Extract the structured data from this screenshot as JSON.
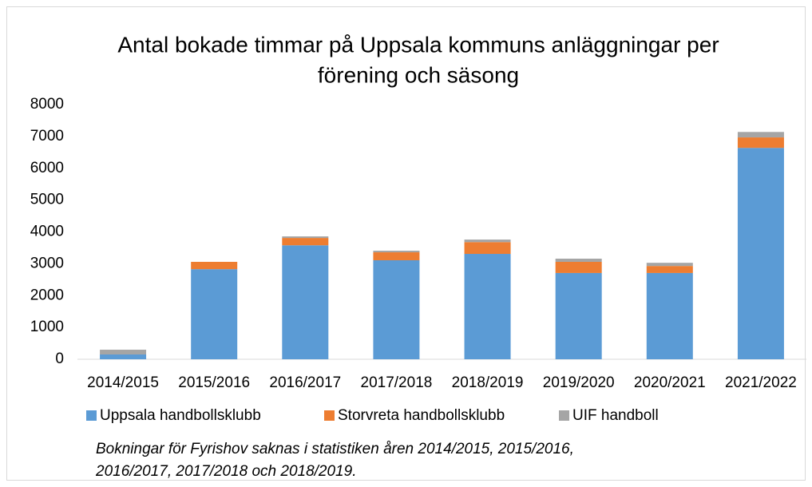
{
  "chart_data": {
    "type": "stacked_bar",
    "title": [
      "Antal bokade timmar på Uppsala kommuns anläggningar  per",
      "förening och säsong"
    ],
    "categories": [
      "2014/2015",
      "2015/2016",
      "2016/2017",
      "2017/2018",
      "2018/2019",
      "2019/2020",
      "2020/2021",
      "2021/2022"
    ],
    "series": [
      {
        "name": "Uppsala handbollsklubb",
        "color": "#5b9bd5",
        "values": [
          150,
          2830,
          3580,
          3110,
          3310,
          2710,
          2710,
          6640
        ]
      },
      {
        "name": "Storvreta handbollsklubb",
        "color": "#ed7d31",
        "values": [
          0,
          230,
          230,
          250,
          370,
          350,
          220,
          330
        ]
      },
      {
        "name": "UIF handboll",
        "color": "#a5a5a5",
        "values": [
          150,
          0,
          50,
          50,
          80,
          100,
          100,
          170
        ]
      }
    ],
    "ylim": [
      0,
      8000
    ],
    "yticks": [
      0,
      1000,
      2000,
      3000,
      4000,
      5000,
      6000,
      7000,
      8000
    ],
    "grid": false,
    "legend": "bottom",
    "annotations": [
      "Bokningar för Fyrishov saknas i statistiken åren 2014/2015, 2015/2016,",
      "2016/2017, 2017/2018 och 2018/2019."
    ]
  }
}
